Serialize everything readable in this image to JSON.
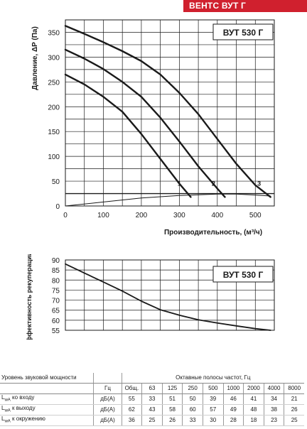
{
  "header": {
    "title": "ВЕНТС ВУТ Г",
    "bar_color": "#d0202e"
  },
  "chart_data": [
    {
      "type": "line",
      "model_label": "ВУТ 530 Г",
      "xlabel": "Производительность, (м³/ч)",
      "ylabel": "Давление, ΔP (Па)",
      "xlim": [
        0,
        550
      ],
      "ylim": [
        0,
        375
      ],
      "xticks": [
        "0",
        "100",
        "200",
        "300",
        "400",
        "500"
      ],
      "yticks": [
        "0",
        "50",
        "100",
        "150",
        "200",
        "250",
        "300",
        "350"
      ],
      "grid": true,
      "series": [
        {
          "name": "1",
          "points": [
            [
              0,
              265
            ],
            [
              50,
              245
            ],
            [
              100,
              220
            ],
            [
              150,
              190
            ],
            [
              200,
              145
            ],
            [
              250,
              95
            ],
            [
              300,
              45
            ],
            [
              330,
              18
            ]
          ]
        },
        {
          "name": "2",
          "points": [
            [
              0,
              315
            ],
            [
              50,
              297
            ],
            [
              100,
              276
            ],
            [
              150,
              250
            ],
            [
              200,
              220
            ],
            [
              250,
              178
            ],
            [
              300,
              130
            ],
            [
              350,
              80
            ],
            [
              400,
              35
            ],
            [
              420,
              18
            ]
          ]
        },
        {
          "name": "3",
          "points": [
            [
              0,
              363
            ],
            [
              50,
              347
            ],
            [
              100,
              330
            ],
            [
              150,
              312
            ],
            [
              200,
              292
            ],
            [
              250,
              265
            ],
            [
              300,
              228
            ],
            [
              350,
              185
            ],
            [
              400,
              135
            ],
            [
              450,
              85
            ],
            [
              500,
              42
            ],
            [
              540,
              18
            ]
          ]
        },
        {
          "name": "",
          "points": [
            [
              0,
              0
            ],
            [
              100,
              8
            ],
            [
              200,
              16
            ],
            [
              300,
              21
            ],
            [
              400,
              24
            ],
            [
              450,
              24
            ],
            [
              500,
              22
            ],
            [
              540,
              20
            ]
          ]
        }
      ],
      "hline": 25
    },
    {
      "type": "line",
      "model_label": "ВУТ 530 Г",
      "ylabel": "эффективность рекуперации, %",
      "xlim": [
        0,
        550
      ],
      "ylim": [
        55,
        90
      ],
      "yticks": [
        "55",
        "60",
        "65",
        "70",
        "75",
        "80",
        "85",
        "90"
      ],
      "grid": true,
      "series": [
        {
          "name": "",
          "points": [
            [
              0,
              88
            ],
            [
              50,
              83.5
            ],
            [
              100,
              79
            ],
            [
              150,
              74.5
            ],
            [
              200,
              69.5
            ],
            [
              250,
              65.2
            ],
            [
              300,
              62.5
            ],
            [
              350,
              60.2
            ],
            [
              400,
              58.6
            ],
            [
              450,
              57.2
            ],
            [
              500,
              55.8
            ],
            [
              540,
              54.8
            ]
          ]
        }
      ]
    }
  ],
  "noise_table": {
    "title": "Уровень звуковой мощности",
    "bands_title": "Октавные полосы частот, Гц",
    "hz_label": "Гц",
    "columns": [
      "Общ.",
      "63",
      "125",
      "250",
      "500",
      "1000",
      "2000",
      "4000",
      "8000"
    ],
    "rows": [
      {
        "label_sub": "wA",
        "label_rest": " ко входу",
        "unit": "дБ(А)",
        "values": [
          "55",
          "33",
          "51",
          "50",
          "39",
          "46",
          "41",
          "34",
          "21"
        ]
      },
      {
        "label_sub": "wA",
        "label_rest": " к выходу",
        "unit": "дБ(А)",
        "values": [
          "62",
          "43",
          "58",
          "60",
          "57",
          "49",
          "48",
          "38",
          "26"
        ]
      },
      {
        "label_sub": "wA",
        "label_rest": " к окружению",
        "unit": "дБ(А)",
        "values": [
          "36",
          "25",
          "26",
          "33",
          "30",
          "28",
          "18",
          "23",
          "25"
        ]
      }
    ],
    "label_prefix": "L"
  }
}
